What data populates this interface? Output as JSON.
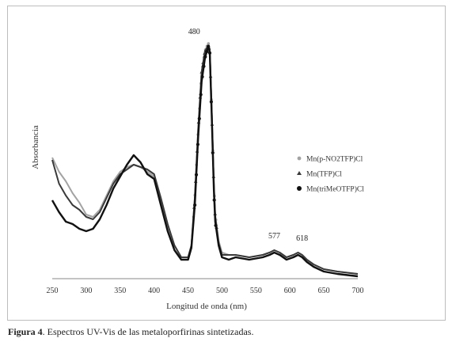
{
  "caption": {
    "label": "Figura 4",
    "text": ". Espectros UV-Vis de las metaloporfirinas sintetizadas."
  },
  "chart_data": {
    "type": "line",
    "title": "",
    "xlabel": "Longitud de onda (nm)",
    "ylabel": "Absorbancia",
    "xlim": [
      250,
      700
    ],
    "ylim": [
      0,
      1
    ],
    "xticks": [
      250,
      300,
      350,
      400,
      450,
      500,
      550,
      600,
      650,
      700
    ],
    "legend_position": "right",
    "annotations": [
      {
        "label": "480",
        "x": 480,
        "y": 0.99
      },
      {
        "label": "577",
        "x": 577,
        "y": 0.13
      },
      {
        "label": "618",
        "x": 618,
        "y": 0.12
      }
    ],
    "x": [
      250,
      260,
      270,
      280,
      290,
      300,
      310,
      320,
      330,
      340,
      350,
      360,
      370,
      380,
      390,
      400,
      410,
      420,
      430,
      440,
      450,
      455,
      460,
      465,
      470,
      475,
      478,
      480,
      482,
      485,
      488,
      490,
      495,
      500,
      510,
      520,
      540,
      560,
      570,
      577,
      585,
      595,
      605,
      612,
      618,
      625,
      635,
      650,
      670,
      700
    ],
    "series": [
      {
        "name": "Mn(p-NO2TFP)Cl",
        "color": "#a3a3a3",
        "values": [
          0.51,
          0.45,
          0.41,
          0.36,
          0.32,
          0.27,
          0.26,
          0.29,
          0.35,
          0.41,
          0.45,
          0.47,
          0.48,
          0.47,
          0.45,
          0.43,
          0.33,
          0.22,
          0.14,
          0.09,
          0.09,
          0.14,
          0.34,
          0.63,
          0.87,
          0.96,
          0.98,
          0.99,
          0.97,
          0.7,
          0.4,
          0.27,
          0.16,
          0.11,
          0.1,
          0.1,
          0.09,
          0.1,
          0.11,
          0.12,
          0.11,
          0.09,
          0.1,
          0.11,
          0.1,
          0.08,
          0.06,
          0.04,
          0.03,
          0.02
        ]
      },
      {
        "name": "Mn(TFP)Cl",
        "color": "#3a3a3a",
        "values": [
          0.5,
          0.4,
          0.35,
          0.31,
          0.29,
          0.26,
          0.25,
          0.28,
          0.34,
          0.4,
          0.44,
          0.46,
          0.48,
          0.47,
          0.46,
          0.44,
          0.34,
          0.23,
          0.14,
          0.09,
          0.09,
          0.14,
          0.34,
          0.63,
          0.87,
          0.96,
          0.97,
          0.98,
          0.96,
          0.69,
          0.39,
          0.26,
          0.15,
          0.1,
          0.1,
          0.1,
          0.09,
          0.1,
          0.11,
          0.12,
          0.11,
          0.09,
          0.1,
          0.11,
          0.1,
          0.08,
          0.06,
          0.04,
          0.03,
          0.02
        ]
      },
      {
        "name": "Mn(triMeOTFP)Cl",
        "color": "#111111",
        "values": [
          0.33,
          0.28,
          0.24,
          0.23,
          0.21,
          0.2,
          0.21,
          0.25,
          0.31,
          0.38,
          0.43,
          0.48,
          0.52,
          0.49,
          0.44,
          0.42,
          0.31,
          0.2,
          0.12,
          0.08,
          0.08,
          0.13,
          0.31,
          0.6,
          0.83,
          0.93,
          0.96,
          0.98,
          0.95,
          0.67,
          0.37,
          0.24,
          0.14,
          0.09,
          0.08,
          0.09,
          0.08,
          0.09,
          0.1,
          0.11,
          0.1,
          0.08,
          0.09,
          0.1,
          0.09,
          0.07,
          0.05,
          0.03,
          0.02,
          0.01
        ]
      }
    ]
  }
}
